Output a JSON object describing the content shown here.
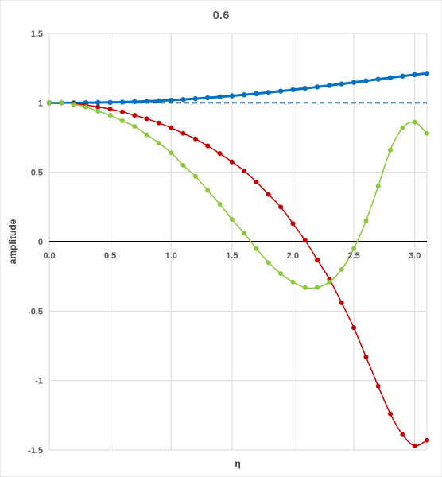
{
  "chart_data": {
    "type": "line",
    "title": "0.6",
    "xlabel": "η",
    "ylabel": "amplitude",
    "xlim": [
      0,
      3.1
    ],
    "ylim": [
      -1.5,
      1.5
    ],
    "x_ticks": [
      "0.0",
      "0.5",
      "1.0",
      "1.5",
      "2.0",
      "2.5",
      "3.0"
    ],
    "y_ticks": [
      "1.5",
      "1",
      "0.5",
      "0",
      "-0.5",
      "-1",
      "-1.5"
    ],
    "grid": true,
    "legend": "none",
    "reference_lines": [
      {
        "y": 1,
        "style": "dashed",
        "color": "#1f4e79"
      },
      {
        "y": 0,
        "style": "solid",
        "color": "#000000"
      }
    ],
    "series": [
      {
        "color": "#0070c0",
        "x": [
          0.0,
          0.1,
          0.2,
          0.3,
          0.4,
          0.5,
          0.6,
          0.7,
          0.8,
          0.9,
          1.0,
          1.1,
          1.2,
          1.3,
          1.4,
          1.5,
          1.6,
          1.7,
          1.8,
          1.9,
          2.0,
          2.1,
          2.2,
          2.3,
          2.4,
          2.5,
          2.6,
          2.7,
          2.8,
          2.9,
          3.0,
          3.1
        ],
        "values": [
          1.0,
          1.0,
          1.0,
          1.001,
          1.002,
          1.003,
          1.005,
          1.008,
          1.011,
          1.015,
          1.019,
          1.024,
          1.03,
          1.036,
          1.043,
          1.05,
          1.058,
          1.066,
          1.075,
          1.084,
          1.094,
          1.104,
          1.114,
          1.125,
          1.136,
          1.147,
          1.158,
          1.17,
          1.181,
          1.192,
          1.203,
          1.212
        ]
      },
      {
        "color": "#c00000",
        "x": [
          0.0,
          0.1,
          0.2,
          0.3,
          0.4,
          0.5,
          0.6,
          0.7,
          0.8,
          0.9,
          1.0,
          1.1,
          1.2,
          1.3,
          1.4,
          1.5,
          1.6,
          1.7,
          1.8,
          1.9,
          2.0,
          2.1,
          2.2,
          2.3,
          2.4,
          2.5,
          2.6,
          2.7,
          2.8,
          2.9,
          3.0,
          3.1
        ],
        "values": [
          1.0,
          1.0,
          0.995,
          0.985,
          0.97,
          0.955,
          0.935,
          0.91,
          0.885,
          0.855,
          0.82,
          0.78,
          0.74,
          0.69,
          0.635,
          0.575,
          0.51,
          0.43,
          0.34,
          0.25,
          0.13,
          0.01,
          -0.13,
          -0.27,
          -0.44,
          -0.62,
          -0.83,
          -1.04,
          -1.24,
          -1.39,
          -1.47,
          -1.43
        ]
      },
      {
        "color": "#8dc63f",
        "x": [
          0.0,
          0.1,
          0.2,
          0.3,
          0.4,
          0.5,
          0.6,
          0.7,
          0.8,
          0.9,
          1.0,
          1.1,
          1.2,
          1.3,
          1.4,
          1.5,
          1.6,
          1.7,
          1.8,
          1.9,
          2.0,
          2.1,
          2.2,
          2.3,
          2.4,
          2.5,
          2.6,
          2.7,
          2.8,
          2.9,
          3.0,
          3.1
        ],
        "values": [
          1.0,
          1.0,
          0.99,
          0.97,
          0.94,
          0.91,
          0.87,
          0.83,
          0.77,
          0.71,
          0.64,
          0.55,
          0.47,
          0.37,
          0.27,
          0.16,
          0.06,
          -0.05,
          -0.15,
          -0.23,
          -0.29,
          -0.33,
          -0.33,
          -0.29,
          -0.2,
          -0.05,
          0.15,
          0.4,
          0.66,
          0.82,
          0.86,
          0.78
        ]
      }
    ]
  }
}
